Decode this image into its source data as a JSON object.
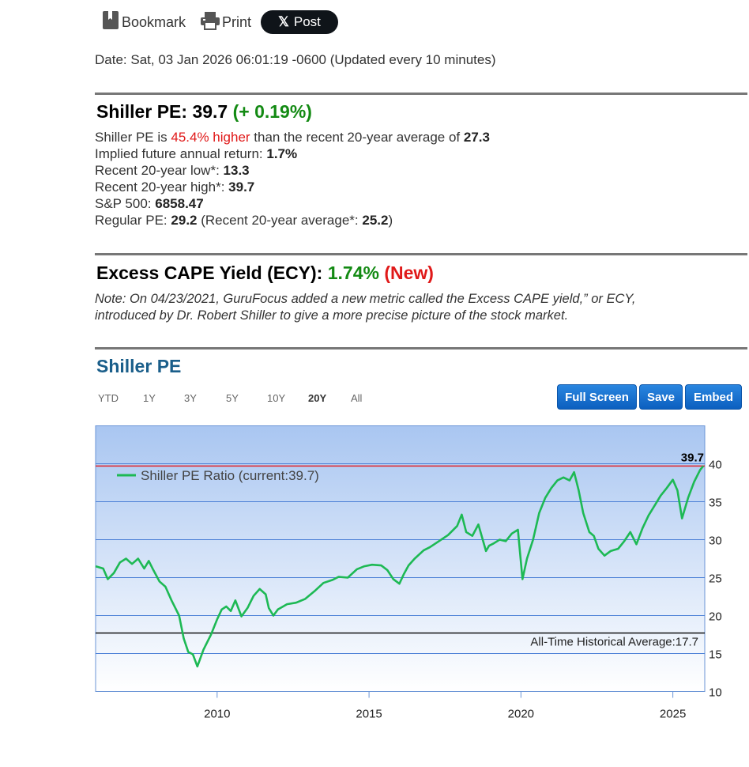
{
  "toolbar": {
    "bookmark_label": "Bookmark",
    "print_label": "Print",
    "post_label": "Post",
    "post_logo": "𝕏"
  },
  "date_line": "Date: Sat, 03 Jan 2026 06:01:19 -0600 (Updated every 10 minutes)",
  "shiller": {
    "title": "Shiller PE:",
    "value": "39.7",
    "change": "(+ 0.19%)",
    "line1_prefix": "Shiller PE is",
    "line1_pct": "45.4% higher",
    "line1_mid": "than the recent 20-year average of",
    "line1_avg": "27.3",
    "implied_label": "Implied future annual return:",
    "implied_value": "1.7%",
    "low_label": "Recent 20-year low*:",
    "low_value": "13.3",
    "high_label": "Recent 20-year high*:",
    "high_value": "39.7",
    "sp_label": "S&P 500:",
    "sp_value": "6858.47",
    "regular_label": "Regular PE:",
    "regular_value": "29.2",
    "regular_mid": "(Recent 20-year average*:",
    "regular_avg": "25.2",
    "regular_end": ")"
  },
  "ecy": {
    "title": "Excess CAPE Yield (ECY):",
    "value": "1.74%",
    "new_label": "(New)",
    "note_line1": "Note: On 04/23/2021, GuruFocus added a new metric called the Excess CAPE yield,” or ECY,",
    "note_line2": "introduced by Dr. Robert Shiller to give a more precise picture of the stock market."
  },
  "chart_section": {
    "title": "Shiller PE",
    "ranges": [
      "YTD",
      "1Y",
      "3Y",
      "5Y",
      "10Y",
      "20Y",
      "All"
    ],
    "active_range": "20Y",
    "buttons": [
      "Full Screen",
      "Save",
      "Embed"
    ]
  },
  "chart_data": {
    "type": "line",
    "legend": "Shiller PE Ratio (current:39.7)",
    "legend_position": "top-left",
    "current_label": "39.7",
    "current_value": 39.7,
    "historical_avg_label": "All-Time Historical Average:17.7",
    "historical_avg_value": 17.7,
    "x_ticks": [
      "2010",
      "2015",
      "2020",
      "2025"
    ],
    "x_tick_values": [
      2010,
      2015,
      2020,
      2025
    ],
    "xlim": [
      2006.0,
      2026.05
    ],
    "y_ticks": [
      "10",
      "15",
      "20",
      "25",
      "30",
      "35",
      "40"
    ],
    "y_tick_values": [
      10,
      15,
      20,
      25,
      30,
      35,
      40
    ],
    "ylim": [
      10,
      45
    ],
    "grid": true,
    "colors": {
      "line": "#1db954",
      "current_line": "#e0242a",
      "avg_line": "#000000",
      "grid": "#4a7fd6"
    },
    "series": [
      {
        "name": "Shiller PE Ratio",
        "x": [
          2006.0,
          2006.25,
          2006.4,
          2006.6,
          2006.8,
          2007.0,
          2007.2,
          2007.4,
          2007.6,
          2007.75,
          2007.9,
          2008.1,
          2008.3,
          2008.5,
          2008.75,
          2008.9,
          2009.05,
          2009.2,
          2009.35,
          2009.55,
          2009.8,
          2010.0,
          2010.15,
          2010.3,
          2010.45,
          2010.6,
          2010.8,
          2011.0,
          2011.2,
          2011.4,
          2011.6,
          2011.7,
          2011.85,
          2012.0,
          2012.3,
          2012.6,
          2012.9,
          2013.2,
          2013.5,
          2013.8,
          2014.0,
          2014.3,
          2014.6,
          2014.85,
          2015.1,
          2015.4,
          2015.6,
          2015.8,
          2016.0,
          2016.15,
          2016.3,
          2016.5,
          2016.8,
          2017.0,
          2017.3,
          2017.6,
          2017.9,
          2018.05,
          2018.2,
          2018.4,
          2018.6,
          2018.85,
          2018.95,
          2019.1,
          2019.3,
          2019.5,
          2019.7,
          2019.9,
          2020.05,
          2020.2,
          2020.4,
          2020.6,
          2020.8,
          2021.0,
          2021.2,
          2021.4,
          2021.6,
          2021.75,
          2021.9,
          2022.05,
          2022.25,
          2022.4,
          2022.55,
          2022.75,
          2022.95,
          2023.2,
          2023.4,
          2023.6,
          2023.8,
          2024.0,
          2024.2,
          2024.4,
          2024.6,
          2024.8,
          2025.0,
          2025.15,
          2025.3,
          2025.5,
          2025.7,
          2025.9,
          2026.0
        ],
        "values": [
          26.5,
          26.2,
          24.8,
          25.6,
          27.0,
          27.5,
          26.8,
          27.5,
          26.2,
          27.2,
          26.0,
          24.5,
          23.8,
          22.0,
          20.0,
          17.0,
          15.2,
          14.9,
          13.3,
          15.5,
          17.5,
          19.5,
          20.8,
          21.2,
          20.6,
          22.0,
          19.9,
          21.0,
          22.6,
          23.5,
          22.8,
          21.0,
          20.0,
          20.8,
          21.5,
          21.7,
          22.2,
          23.2,
          24.3,
          24.7,
          25.1,
          25.0,
          26.1,
          26.5,
          26.7,
          26.6,
          26.0,
          24.8,
          24.2,
          25.5,
          26.6,
          27.5,
          28.6,
          29.0,
          29.8,
          30.6,
          31.8,
          33.3,
          31.0,
          30.5,
          32.0,
          28.5,
          29.2,
          29.5,
          30.0,
          29.8,
          30.8,
          31.3,
          24.8,
          27.5,
          30.0,
          33.5,
          35.5,
          36.8,
          37.8,
          38.2,
          37.8,
          38.9,
          36.5,
          33.5,
          31.0,
          30.5,
          28.8,
          27.9,
          28.5,
          28.8,
          29.8,
          31.0,
          29.4,
          31.5,
          33.2,
          34.5,
          35.8,
          36.8,
          37.9,
          36.5,
          32.8,
          35.5,
          37.6,
          39.2,
          39.7
        ]
      }
    ]
  }
}
